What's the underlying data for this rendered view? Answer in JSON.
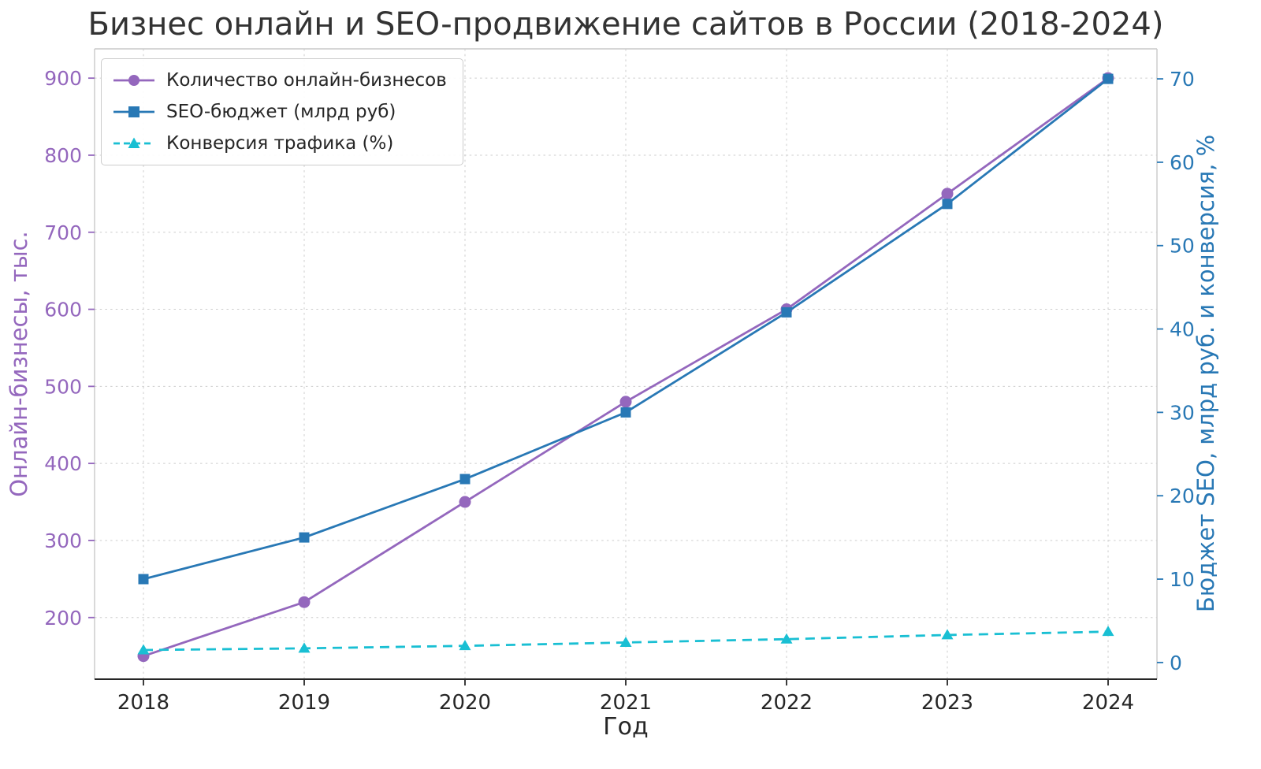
{
  "title": "Бизнес онлайн и SEO-продвижение сайтов в России (2018-2024)",
  "chart_data": {
    "type": "line",
    "title": "Бизнес онлайн и SEO-продвижение сайтов в России (2018-2024)",
    "xlabel": "Год",
    "ylabel_left": "Онлайн-бизнесы, тыс.",
    "ylabel_right": "Бюджет SEO, млрд руб. и конверсия, %",
    "x": [
      "2018",
      "2019",
      "2020",
      "2021",
      "2022",
      "2023",
      "2024"
    ],
    "series": [
      {
        "name": "Количество онлайн-бизнесов",
        "axis": "left",
        "color": "#9467bd",
        "marker": "circle",
        "line_style": "solid",
        "values": [
          150,
          220,
          350,
          480,
          600,
          750,
          900
        ]
      },
      {
        "name": "SEO-бюджет (млрд руб)",
        "axis": "right",
        "color": "#2878b5",
        "marker": "square",
        "line_style": "solid",
        "values": [
          10,
          15,
          22,
          30,
          42,
          55,
          70
        ]
      },
      {
        "name": "Конверсия трафика (%)",
        "axis": "right",
        "color": "#19bfd3",
        "marker": "triangle",
        "line_style": "dashed",
        "values": [
          1.5,
          1.7,
          2.0,
          2.4,
          2.8,
          3.3,
          3.7
        ]
      }
    ],
    "left_axis": {
      "ticks": [
        200,
        300,
        400,
        500,
        600,
        700,
        800,
        900
      ],
      "range": [
        120,
        938
      ],
      "color": "#9467bd"
    },
    "right_axis": {
      "ticks": [
        0,
        10,
        20,
        30,
        40,
        50,
        60,
        70
      ],
      "range": [
        -2,
        73.6
      ],
      "color": "#2878b5"
    },
    "grid": true,
    "legend_position": "upper left"
  }
}
